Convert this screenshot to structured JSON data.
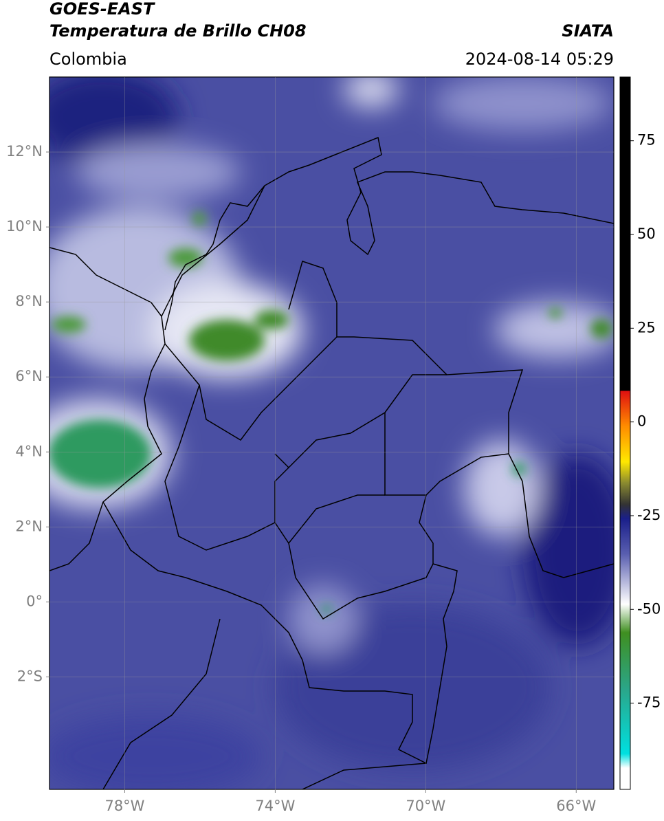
{
  "header": {
    "title": "GOES-EAST",
    "subtitle": "Temperatura de Brillo CH08",
    "source": "SIATA",
    "region": "Colombia",
    "datetime": "2024-08-14 05:29"
  },
  "map": {
    "xlim": [
      -80,
      -65
    ],
    "ylim": [
      -5,
      14
    ],
    "xticks": [
      {
        "value": -78,
        "label": "78°W"
      },
      {
        "value": -74,
        "label": "74°W"
      },
      {
        "value": -70,
        "label": "70°W"
      },
      {
        "value": -66,
        "label": "66°W"
      }
    ],
    "yticks": [
      {
        "value": 12,
        "label": "12°N"
      },
      {
        "value": 10,
        "label": "10°N"
      },
      {
        "value": 8,
        "label": "8°N"
      },
      {
        "value": 6,
        "label": "6°N"
      },
      {
        "value": 4,
        "label": "4°N"
      },
      {
        "value": 2,
        "label": "2°N"
      },
      {
        "value": 0,
        "label": "0°"
      },
      {
        "value": -2,
        "label": "2°S"
      }
    ],
    "grid": true
  },
  "colorbar": {
    "lim": [
      -98,
      92
    ],
    "ticks": [
      75,
      50,
      25,
      0,
      -25,
      -50,
      -75
    ]
  }
}
